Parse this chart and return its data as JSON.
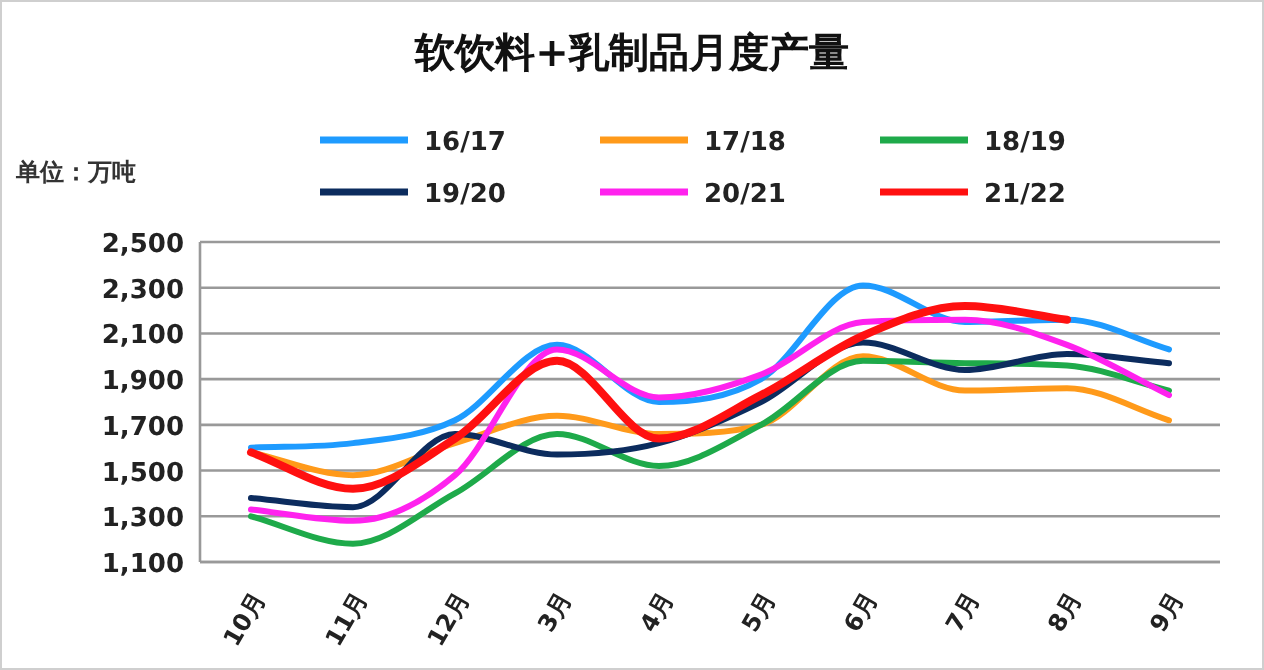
{
  "chart_data": {
    "type": "line",
    "title": "软饮料+乳制品月度产量",
    "ylabel": "单位：万吨",
    "categories": [
      "10月",
      "11月",
      "12月",
      "3月",
      "4月",
      "5月",
      "6月",
      "7月",
      "8月",
      "9月"
    ],
    "ylim": [
      1100,
      2500
    ],
    "yticks": [
      {
        "value": 1100,
        "label": "1,100"
      },
      {
        "value": 1300,
        "label": "1,300"
      },
      {
        "value": 1500,
        "label": "1,500"
      },
      {
        "value": 1700,
        "label": "1,700"
      },
      {
        "value": 1900,
        "label": "1,900"
      },
      {
        "value": 2100,
        "label": "2,100"
      },
      {
        "value": 2300,
        "label": "2,300"
      },
      {
        "value": 2500,
        "label": "2,500"
      }
    ],
    "grid": "y",
    "legend": "top",
    "marker": "none",
    "series": [
      {
        "name": "16/17",
        "color": "#1e9bff",
        "values": [
          1600,
          1620,
          1720,
          2050,
          1800,
          1900,
          2310,
          2150,
          2160,
          2030
        ]
      },
      {
        "name": "17/18",
        "color": "#ff9a1a",
        "values": [
          1580,
          1480,
          1620,
          1740,
          1660,
          1700,
          2000,
          1850,
          1860,
          1720
        ]
      },
      {
        "name": "18/19",
        "color": "#1eaa4a",
        "values": [
          1300,
          1180,
          1400,
          1660,
          1520,
          1700,
          1980,
          1970,
          1960,
          1850
        ]
      },
      {
        "name": "19/20",
        "color": "#0c2c5e",
        "values": [
          1380,
          1340,
          1660,
          1570,
          1620,
          1800,
          2060,
          1940,
          2010,
          1970
        ]
      },
      {
        "name": "20/21",
        "color": "#ff22ee",
        "values": [
          1330,
          1280,
          1480,
          2030,
          1820,
          1920,
          2150,
          2160,
          2050,
          1830
        ]
      },
      {
        "name": "21/22",
        "color": "#ff1010",
        "values": [
          1580,
          1420,
          1640,
          1980,
          1640,
          1830,
          2090,
          2220,
          2160,
          null
        ]
      }
    ]
  }
}
